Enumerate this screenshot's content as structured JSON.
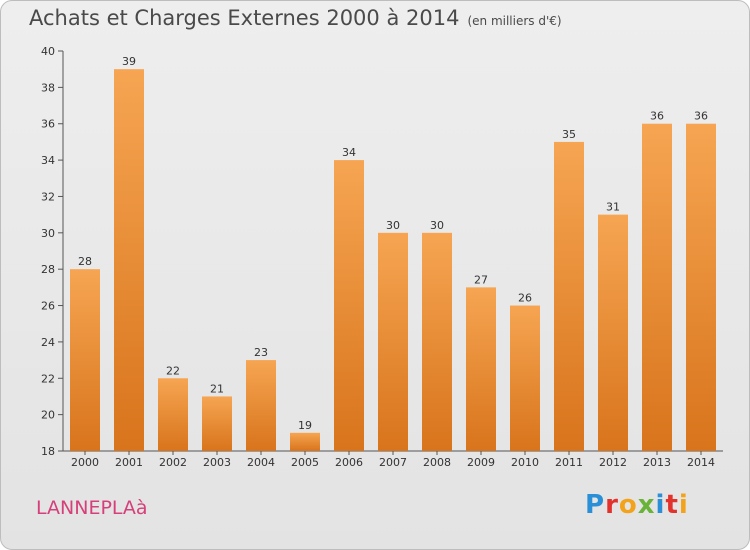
{
  "title": "Achats et Charges Externes 2000 à 2014",
  "unit": "(en milliers d'€)",
  "commune": "LANNEPLAà",
  "logo": "Proxiti",
  "colors": {
    "bar_light": "#f6a552",
    "bar_dark": "#d8741c",
    "commune": "#d6407a",
    "logo_letters": [
      "#2a8fd6",
      "#e2322b",
      "#f2a31b",
      "#69b33b",
      "#2a8fd6",
      "#e2322b",
      "#f2a31b"
    ]
  },
  "chart_data": {
    "type": "bar",
    "title": "Achats et Charges Externes 2000 à 2014",
    "subtitle": "(en milliers d'€)",
    "categories": [
      "2000",
      "2001",
      "2002",
      "2003",
      "2004",
      "2005",
      "2006",
      "2007",
      "2008",
      "2009",
      "2010",
      "2011",
      "2012",
      "2013",
      "2014"
    ],
    "values": [
      28,
      39,
      22,
      21,
      23,
      19,
      34,
      30,
      30,
      27,
      26,
      35,
      31,
      36,
      36
    ],
    "ylim": [
      18,
      40
    ],
    "yticks": [
      18,
      20,
      22,
      24,
      26,
      28,
      30,
      32,
      34,
      36,
      38,
      40
    ],
    "grid": false,
    "data_labels": true
  }
}
